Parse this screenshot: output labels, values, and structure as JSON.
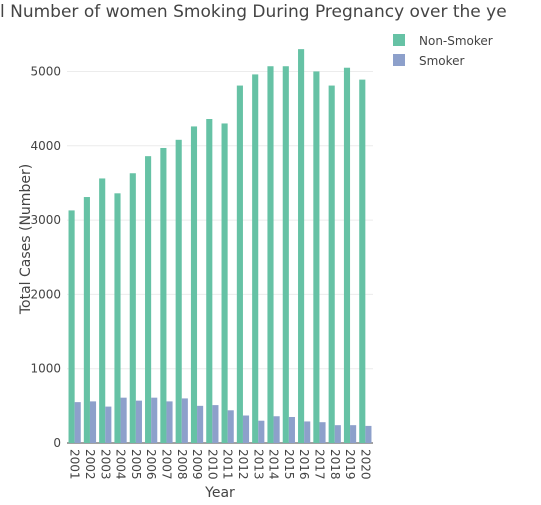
{
  "chart_data": {
    "type": "bar",
    "title": "l Number of women Smoking During Pregnancy over the ye",
    "xlabel": "Year",
    "ylabel": "Total Cases (Number)",
    "ylim": [
      0,
      5450
    ],
    "yticks": [
      0,
      1000,
      2000,
      3000,
      4000,
      5000
    ],
    "grid": true,
    "legend_position": "top-right",
    "categories": [
      "2001",
      "2002",
      "2003",
      "2004",
      "2005",
      "2006",
      "2007",
      "2008",
      "2009",
      "2010",
      "2011",
      "2012",
      "2013",
      "2014",
      "2015",
      "2016",
      "2017",
      "2018",
      "2019",
      "2020"
    ],
    "series": [
      {
        "name": "Non-Smoker",
        "color": "#66c2a5",
        "values": [
          3130,
          3310,
          3560,
          3360,
          3630,
          3860,
          3970,
          4080,
          4260,
          4360,
          4300,
          4810,
          4960,
          5070,
          5070,
          5300,
          5000,
          4810,
          5050,
          4890
        ]
      },
      {
        "name": "Smoker",
        "color": "#8da0cb",
        "values": [
          550,
          560,
          490,
          610,
          570,
          610,
          560,
          600,
          500,
          510,
          440,
          370,
          300,
          360,
          350,
          290,
          280,
          240,
          240,
          230
        ]
      }
    ]
  }
}
